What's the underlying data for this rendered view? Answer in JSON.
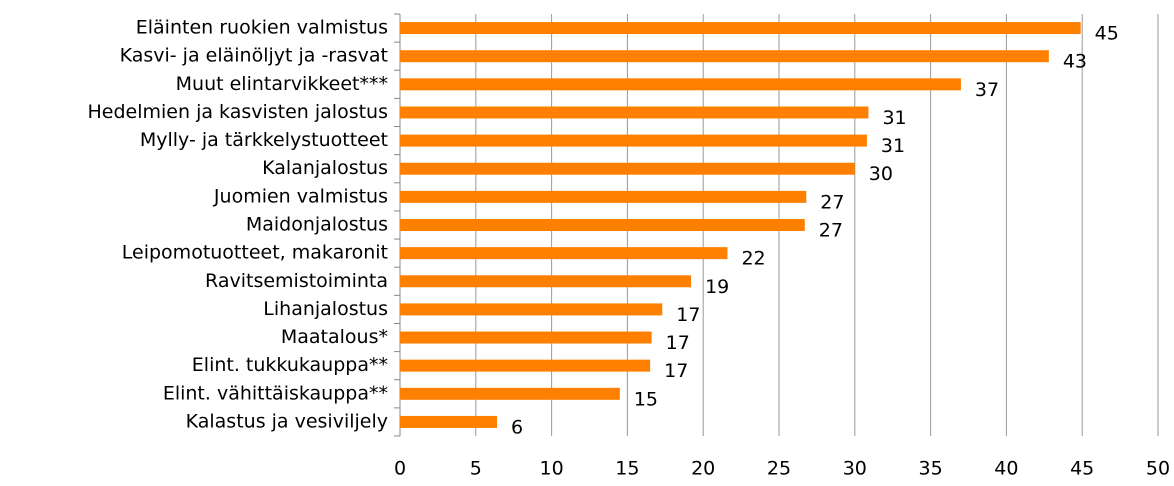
{
  "chart_data": {
    "type": "barh",
    "categories": [
      "Eläinten ruokien valmistus",
      "Kasvi- ja eläinöljyt ja -rasvat",
      "Muut elintarvikkeet***",
      "Hedelmien ja kasvisten jalostus",
      "Mylly- ja tärkkelystuotteet",
      "Kalanjalostus",
      "Juomien valmistus",
      "Maidonjalostus",
      "Leipomotuotteet, makaronit",
      "Ravitsemistoiminta",
      "Lihanjalostus",
      "Maatalous*",
      "Elint. tukkukauppa**",
      "Elint. vähittäiskauppa**",
      "Kalastus ja vesiviljely"
    ],
    "values": [
      44.9,
      42.8,
      37.0,
      30.9,
      30.8,
      30.0,
      26.8,
      26.7,
      21.6,
      19.2,
      17.3,
      16.6,
      16.5,
      14.5,
      6.4
    ],
    "value_labels": [
      "45",
      "43",
      "37",
      "31",
      "31",
      "30",
      "27",
      "27",
      "22",
      "19",
      "17",
      "17",
      "17",
      "15",
      "6"
    ],
    "color": "#ff8000",
    "xlim": [
      0,
      50
    ],
    "xticks": [
      0,
      5,
      10,
      15,
      20,
      25,
      30,
      35,
      40,
      45,
      50
    ],
    "grid": true
  }
}
